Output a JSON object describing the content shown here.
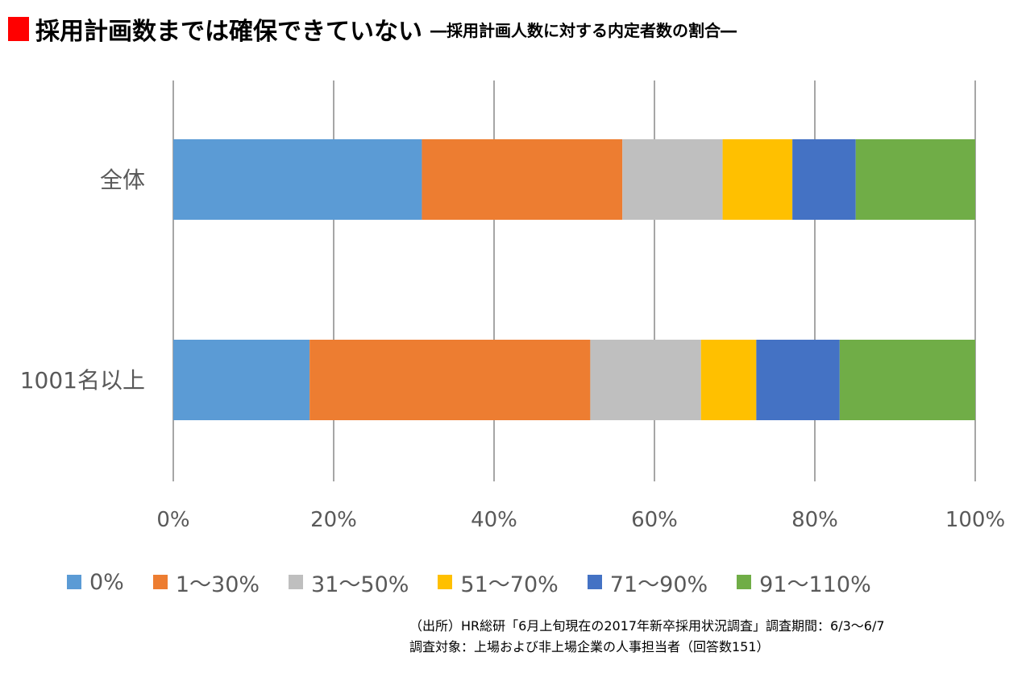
{
  "title": {
    "main": "採用計画数までは確保できていない",
    "sub": "―採用計画人数に対する内定者数の割合―",
    "marker_color": "#FF0000"
  },
  "chart_data": {
    "type": "bar",
    "orientation": "horizontal",
    "stacked": true,
    "percent_stacked": true,
    "categories": [
      "全体",
      "1001名以上"
    ],
    "series": [
      {
        "name": "0%",
        "color": "#5B9BD5",
        "values": [
          31,
          17
        ]
      },
      {
        "name": "1～30%",
        "color": "#ED7D31",
        "values": [
          25,
          35
        ]
      },
      {
        "name": "31～50%",
        "color": "#BFBFBF",
        "values": [
          12.5,
          13.8
        ]
      },
      {
        "name": "51～70%",
        "color": "#FFC000",
        "values": [
          8.7,
          6.9
        ]
      },
      {
        "name": "71～90%",
        "color": "#4472C4",
        "values": [
          7.9,
          10.4
        ]
      },
      {
        "name": "91～110%",
        "color": "#70AD47",
        "values": [
          14.9,
          16.9
        ]
      }
    ],
    "x_ticks": [
      "0%",
      "20%",
      "40%",
      "60%",
      "80%",
      "100%"
    ],
    "xlim": [
      0,
      100
    ],
    "grid": true,
    "legend_position": "bottom"
  },
  "source": {
    "line1": "（出所）HR総研「6月上旬現在の2017年新卒採用状況調査」調査期間：6/3～6/7",
    "line2": "調査対象：上場および非上場企業の人事担当者（回答数151）"
  }
}
